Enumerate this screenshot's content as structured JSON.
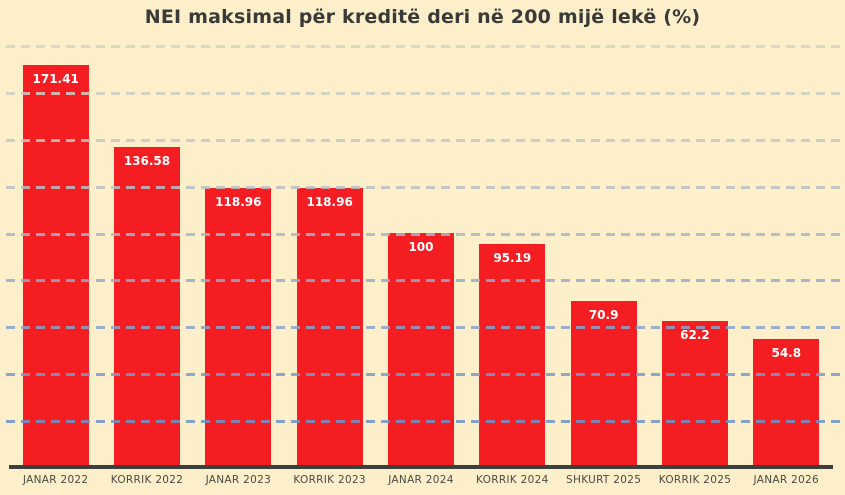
{
  "title": "NEI maksimal për kreditë deri në 200 mijë lekë (%)",
  "chart_data": {
    "type": "bar",
    "title": "NEI maksimal për kreditë deri në 200 mijë lekë (%)",
    "categories": [
      "JANAR 2022",
      "KORRIK 2022",
      "JANAR 2023",
      "KORRIK 2023",
      "JANAR 2024",
      "KORRIK 2024",
      "SHKURT 2025",
      "KORRIK 2025",
      "JANAR 2026"
    ],
    "values": [
      171.41,
      136.58,
      118.96,
      118.96,
      100,
      95.19,
      70.9,
      62.2,
      54.8
    ],
    "value_labels": [
      "171.41",
      "136.58",
      "118.96",
      "118.96",
      "100",
      "95.19",
      "70.9",
      "62.2",
      "54.8"
    ],
    "xlabel": "",
    "ylabel": "",
    "ylim": [
      0,
      180
    ],
    "grid_interval": 20,
    "grid": true,
    "grid_style": "dashed",
    "legend_position": "none",
    "bar_color": "#f41d22",
    "value_label_color": "#ffffff",
    "background_color": "#fcefc9",
    "axis_color": "#3e3e3a",
    "title_color": "#3a3a38",
    "tick_label_color": "#4a4a43",
    "gridline_colors_bottom_to_top": [
      "#6d92c8",
      "#7a99cb",
      "#89a2ca",
      "#98abc8",
      "#a9b6c6",
      "#b8bfc4",
      "#c6c7c2",
      "#cfcdc2",
      "#d6d2c2"
    ]
  }
}
